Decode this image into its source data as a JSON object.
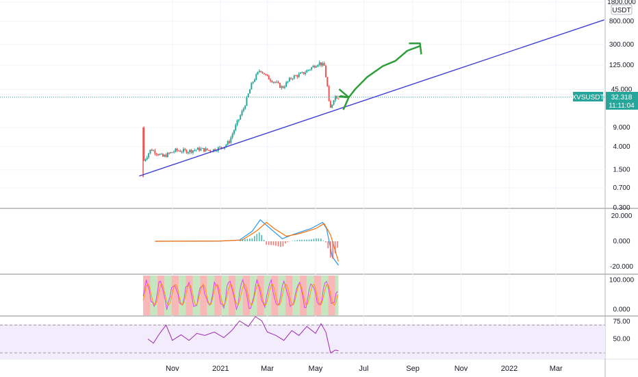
{
  "chart_data": {
    "type": "candlestick",
    "symbol": "XVSUSDT",
    "quote_currency": "USDT",
    "last_price": "32.318",
    "countdown": "11:11:04",
    "price_scale": "log",
    "price_ticks": [
      "1800.000",
      "800.000",
      "300.000",
      "125.000",
      "45.000",
      "9.000",
      "4.000",
      "1.500",
      "0.700",
      "0.300"
    ],
    "date_ticks": [
      "Nov",
      "2021",
      "Mar",
      "May",
      "Jul",
      "Sep",
      "Nov",
      "2022",
      "Mar"
    ],
    "price_path": [
      {
        "date": "2020-09-25",
        "price": 9.0
      },
      {
        "date": "2020-09-26",
        "price": 2.2
      },
      {
        "date": "2020-10-05",
        "price": 3.6
      },
      {
        "date": "2020-10-20",
        "price": 2.6
      },
      {
        "date": "2020-11-05",
        "price": 3.4
      },
      {
        "date": "2020-11-20",
        "price": 3.3
      },
      {
        "date": "2020-12-05",
        "price": 3.6
      },
      {
        "date": "2020-12-20",
        "price": 3.4
      },
      {
        "date": "2021-01-05",
        "price": 4.0
      },
      {
        "date": "2021-01-12",
        "price": 5.0
      },
      {
        "date": "2021-01-20",
        "price": 9.5
      },
      {
        "date": "2021-01-30",
        "price": 20.0
      },
      {
        "date": "2021-02-10",
        "price": 60.0
      },
      {
        "date": "2021-02-20",
        "price": 105.0
      },
      {
        "date": "2021-03-01",
        "price": 75.0
      },
      {
        "date": "2021-03-10",
        "price": 62.0
      },
      {
        "date": "2021-03-20",
        "price": 48.0
      },
      {
        "date": "2021-04-01",
        "price": 75.0
      },
      {
        "date": "2021-04-15",
        "price": 88.0
      },
      {
        "date": "2021-04-25",
        "price": 110.0
      },
      {
        "date": "2021-05-05",
        "price": 140.0
      },
      {
        "date": "2021-05-12",
        "price": 120.0
      },
      {
        "date": "2021-05-16",
        "price": 50.0
      },
      {
        "date": "2021-05-19",
        "price": 18.0
      },
      {
        "date": "2021-05-25",
        "price": 34.0
      },
      {
        "date": "2021-05-30",
        "price": 32.3
      }
    ],
    "trendline": {
      "start": {
        "date": "2020-09-20",
        "price": 1.15
      },
      "end": {
        "date": "2022-05-01",
        "price": 850
      }
    },
    "projection": [
      {
        "date": "2021-06-01",
        "price": 34
      },
      {
        "date": "2021-06-12",
        "price": 32
      },
      {
        "date": "2021-06-20",
        "price": 45
      },
      {
        "date": "2021-07-05",
        "price": 75
      },
      {
        "date": "2021-07-25",
        "price": 120
      },
      {
        "date": "2021-08-10",
        "price": 150
      },
      {
        "date": "2021-08-25",
        "price": 230
      },
      {
        "date": "2021-09-10",
        "price": 280
      }
    ],
    "macd": {
      "ticks": [
        "20.000",
        "0.000",
        "-20.000"
      ],
      "ylim": [
        -25,
        25
      ],
      "macd_line": [
        {
          "date": "2020-10-10",
          "v": 0
        },
        {
          "date": "2021-01-01",
          "v": 0.2
        },
        {
          "date": "2021-01-25",
          "v": 1
        },
        {
          "date": "2021-02-10",
          "v": 8
        },
        {
          "date": "2021-02-20",
          "v": 17
        },
        {
          "date": "2021-03-05",
          "v": 10
        },
        {
          "date": "2021-03-20",
          "v": 2
        },
        {
          "date": "2021-04-01",
          "v": 5
        },
        {
          "date": "2021-04-15",
          "v": 8
        },
        {
          "date": "2021-04-25",
          "v": 10
        },
        {
          "date": "2021-05-10",
          "v": 15
        },
        {
          "date": "2021-05-15",
          "v": 10
        },
        {
          "date": "2021-05-22",
          "v": -12
        },
        {
          "date": "2021-05-30",
          "v": -19
        }
      ],
      "signal_line": [
        {
          "date": "2020-10-10",
          "v": 0
        },
        {
          "date": "2021-01-01",
          "v": 0.2
        },
        {
          "date": "2021-01-28",
          "v": 1
        },
        {
          "date": "2021-02-15",
          "v": 8
        },
        {
          "date": "2021-02-28",
          "v": 15
        },
        {
          "date": "2021-03-10",
          "v": 10
        },
        {
          "date": "2021-03-25",
          "v": 4
        },
        {
          "date": "2021-04-10",
          "v": 6
        },
        {
          "date": "2021-05-01",
          "v": 10
        },
        {
          "date": "2021-05-12",
          "v": 14
        },
        {
          "date": "2021-05-20",
          "v": 5
        },
        {
          "date": "2021-05-30",
          "v": -16
        }
      ]
    },
    "stoch": {
      "ticks": [
        "100.000",
        "0.000"
      ],
      "ylim": [
        -20,
        115
      ]
    },
    "rsi": {
      "ticks": [
        "75.00",
        "50.00"
      ],
      "ylim": [
        22,
        82
      ],
      "bands": [
        70,
        30
      ],
      "values": [
        {
          "date": "2020-10-01",
          "v": 50
        },
        {
          "date": "2020-10-08",
          "v": 44
        },
        {
          "date": "2020-10-16",
          "v": 58
        },
        {
          "date": "2020-10-24",
          "v": 70
        },
        {
          "date": "2020-11-01",
          "v": 48
        },
        {
          "date": "2020-11-12",
          "v": 56
        },
        {
          "date": "2020-11-22",
          "v": 48
        },
        {
          "date": "2020-12-02",
          "v": 58
        },
        {
          "date": "2020-12-12",
          "v": 55
        },
        {
          "date": "2020-12-24",
          "v": 60
        },
        {
          "date": "2021-01-05",
          "v": 52
        },
        {
          "date": "2021-01-15",
          "v": 62
        },
        {
          "date": "2021-01-25",
          "v": 76
        },
        {
          "date": "2021-02-05",
          "v": 68
        },
        {
          "date": "2021-02-14",
          "v": 82
        },
        {
          "date": "2021-02-22",
          "v": 76
        },
        {
          "date": "2021-03-01",
          "v": 60
        },
        {
          "date": "2021-03-12",
          "v": 55
        },
        {
          "date": "2021-03-22",
          "v": 48
        },
        {
          "date": "2021-04-01",
          "v": 62
        },
        {
          "date": "2021-04-10",
          "v": 55
        },
        {
          "date": "2021-04-20",
          "v": 68
        },
        {
          "date": "2021-05-01",
          "v": 58
        },
        {
          "date": "2021-05-08",
          "v": 72
        },
        {
          "date": "2021-05-14",
          "v": 60
        },
        {
          "date": "2021-05-20",
          "v": 30
        },
        {
          "date": "2021-05-26",
          "v": 34
        },
        {
          "date": "2021-05-30",
          "v": 33
        }
      ]
    }
  }
}
